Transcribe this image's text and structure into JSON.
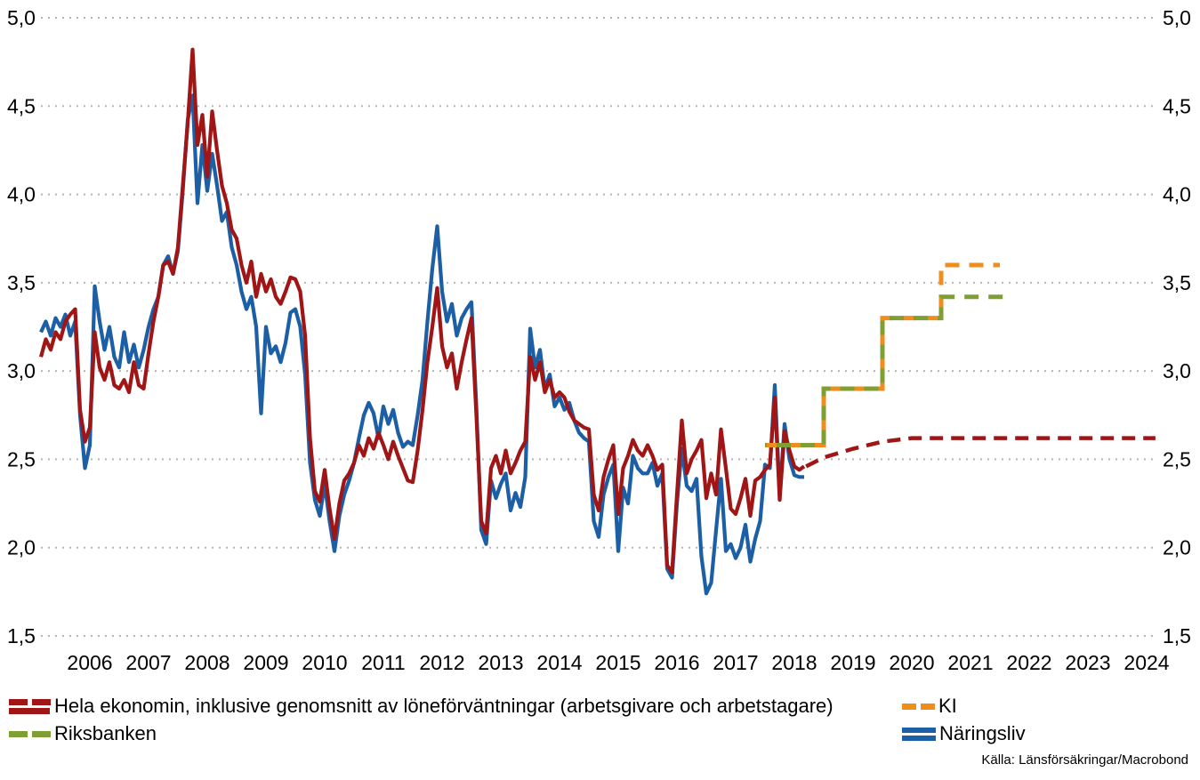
{
  "source": "Källa: Länsförsäkringar/Macrobond",
  "legend": {
    "items": [
      {
        "label": "Hela ekonomin, inklusive genomsnitt av löneförväntningar (arbetsgivare och arbetstagare)",
        "color": "#a01515",
        "style": "solid-with-dashed-forecast"
      },
      {
        "label": "KI",
        "color": "#ef8e1d",
        "style": "dashed"
      },
      {
        "label": "Riksbanken",
        "color": "#7f9e33",
        "style": "dashed"
      },
      {
        "label": "Näringsliv",
        "color": "#1d5fa5",
        "style": "solid"
      }
    ]
  },
  "chart_data": {
    "type": "line",
    "title": "",
    "grid": "dotted-horizontal",
    "legend_position": "bottom",
    "y_axis": {
      "min": 1.5,
      "max": 5.0,
      "tick_step": 0.5,
      "sides": "both",
      "ticks": [
        {
          "value": 5.0,
          "label": "5,0"
        },
        {
          "value": 4.5,
          "label": "4,5"
        },
        {
          "value": 4.0,
          "label": "4,0"
        },
        {
          "value": 3.5,
          "label": "3,5"
        },
        {
          "value": 3.0,
          "label": "3,0"
        },
        {
          "value": 2.5,
          "label": "2,5"
        },
        {
          "value": 2.0,
          "label": "2,0"
        },
        {
          "value": 1.5,
          "label": "1,5"
        }
      ]
    },
    "x_axis": {
      "years": [
        2006,
        2007,
        2008,
        2009,
        2010,
        2011,
        2012,
        2013,
        2014,
        2015,
        2016,
        2017,
        2018,
        2019,
        2020,
        2021,
        2022,
        2023,
        2024
      ]
    },
    "series": [
      {
        "name": "Näringsliv",
        "color": "#1d5fa5",
        "freq": "monthly",
        "start_year": 2005,
        "start_month": 9,
        "values": [
          3.22,
          3.28,
          3.2,
          3.3,
          3.25,
          3.32,
          3.2,
          3.28,
          2.75,
          2.45,
          2.58,
          3.48,
          3.28,
          3.12,
          3.25,
          3.08,
          3.02,
          3.22,
          3.05,
          3.15,
          3.02,
          3.12,
          3.25,
          3.35,
          3.42,
          3.6,
          3.65,
          3.55,
          3.68,
          4.02,
          4.42,
          4.56,
          3.95,
          4.28,
          4.02,
          4.23,
          4.05,
          3.85,
          3.9,
          3.7,
          3.6,
          3.45,
          3.35,
          3.42,
          3.25,
          2.76,
          3.25,
          3.1,
          3.14,
          3.05,
          3.16,
          3.33,
          3.35,
          3.25,
          2.98,
          2.48,
          2.27,
          2.18,
          2.36,
          2.15,
          1.98,
          2.18,
          2.3,
          2.38,
          2.48,
          2.62,
          2.75,
          2.82,
          2.76,
          2.62,
          2.8,
          2.7,
          2.78,
          2.65,
          2.57,
          2.6,
          2.58,
          2.75,
          2.95,
          3.28,
          3.58,
          3.82,
          3.45,
          3.28,
          3.38,
          3.2,
          3.3,
          3.35,
          3.39,
          2.8,
          2.1,
          2.02,
          2.38,
          2.28,
          2.36,
          2.42,
          2.21,
          2.31,
          2.23,
          2.4,
          3.24,
          3.02,
          3.12,
          2.9,
          2.98,
          2.8,
          2.85,
          2.78,
          2.82,
          2.72,
          2.65,
          2.62,
          2.6,
          2.15,
          2.06,
          2.3,
          2.4,
          2.47,
          1.98,
          2.34,
          2.25,
          2.52,
          2.45,
          2.42,
          2.42,
          2.48,
          2.35,
          2.42,
          1.88,
          1.83,
          2.25,
          2.56,
          2.35,
          2.32,
          2.39,
          1.95,
          1.74,
          1.8,
          2.1,
          2.39,
          1.98,
          2.02,
          1.94,
          2.0,
          2.13,
          1.92,
          2.05,
          2.15,
          2.47,
          2.45,
          2.92,
          2.29,
          2.7,
          2.5,
          2.41,
          2.4,
          2.4
        ]
      },
      {
        "name": "Hela ekonomin, inklusive genomsnitt av löneförväntningar (arbetsgivare och arbetstagare)",
        "color": "#a01515",
        "freq": "monthly",
        "start_year": 2005,
        "start_month": 9,
        "values": [
          3.08,
          3.18,
          3.12,
          3.22,
          3.18,
          3.28,
          3.32,
          3.35,
          2.78,
          2.6,
          2.68,
          3.22,
          3.02,
          2.95,
          3.05,
          2.92,
          2.9,
          2.95,
          2.88,
          3.05,
          2.92,
          2.9,
          3.1,
          3.28,
          3.42,
          3.6,
          3.62,
          3.55,
          3.7,
          4.05,
          4.4,
          4.82,
          4.28,
          4.45,
          4.1,
          4.47,
          4.25,
          4.05,
          3.95,
          3.8,
          3.75,
          3.6,
          3.5,
          3.62,
          3.42,
          3.55,
          3.45,
          3.52,
          3.42,
          3.38,
          3.45,
          3.53,
          3.52,
          3.45,
          3.2,
          2.62,
          2.32,
          2.26,
          2.44,
          2.22,
          2.05,
          2.25,
          2.38,
          2.42,
          2.48,
          2.58,
          2.52,
          2.62,
          2.56,
          2.65,
          2.58,
          2.5,
          2.6,
          2.52,
          2.45,
          2.38,
          2.37,
          2.55,
          2.78,
          3.05,
          3.25,
          3.47,
          3.14,
          3.02,
          3.1,
          2.9,
          3.05,
          3.18,
          3.3,
          2.75,
          2.15,
          2.08,
          2.45,
          2.52,
          2.42,
          2.55,
          2.42,
          2.48,
          2.55,
          2.6,
          3.08,
          2.95,
          3.05,
          2.88,
          2.95,
          2.85,
          2.88,
          2.85,
          2.77,
          2.72,
          2.7,
          2.68,
          2.67,
          2.3,
          2.21,
          2.4,
          2.5,
          2.58,
          2.19,
          2.45,
          2.52,
          2.61,
          2.55,
          2.52,
          2.58,
          2.52,
          2.44,
          2.47,
          1.9,
          1.86,
          2.3,
          2.72,
          2.42,
          2.5,
          2.55,
          2.61,
          2.28,
          2.42,
          2.3,
          2.67,
          2.45,
          2.22,
          2.19,
          2.28,
          2.39,
          2.18,
          2.38,
          2.4,
          2.44,
          2.47,
          2.85,
          2.27,
          2.66,
          2.55,
          2.46,
          2.44,
          2.46
        ]
      }
    ],
    "forecasts": [
      {
        "name": "Hela ekonomin (prognos)",
        "color": "#a01515",
        "dash": "15 9",
        "width": 4.5,
        "dashoffset": 0,
        "points": [
          [
            2018.7,
            2.46
          ],
          [
            2019.0,
            2.51
          ],
          [
            2019.5,
            2.56
          ],
          [
            2020.0,
            2.6
          ],
          [
            2020.5,
            2.62
          ],
          [
            2024.65,
            2.62
          ]
        ]
      },
      {
        "name": "KI",
        "color": "#ef8e1d",
        "dash": "16 11",
        "width": 5,
        "dashoffset": 0,
        "points": [
          [
            2018.0,
            2.58
          ],
          [
            2019.0,
            2.58
          ],
          [
            2019.0,
            2.9
          ],
          [
            2020.0,
            2.9
          ],
          [
            2020.0,
            3.3
          ],
          [
            2021.0,
            3.3
          ],
          [
            2021.0,
            3.6
          ],
          [
            2022.0,
            3.6
          ]
        ]
      },
      {
        "name": "Riksbanken",
        "color": "#7f9e33",
        "dash": "16 11",
        "width": 5,
        "dashoffset": 14,
        "points": [
          [
            2018.0,
            2.58
          ],
          [
            2019.0,
            2.58
          ],
          [
            2019.0,
            2.9
          ],
          [
            2020.0,
            2.9
          ],
          [
            2020.0,
            3.3
          ],
          [
            2021.0,
            3.3
          ],
          [
            2021.0,
            3.42
          ],
          [
            2022.05,
            3.42
          ]
        ]
      }
    ],
    "annual_forecast_levels": {
      "KI": {
        "2018": 2.6,
        "2019": 2.9,
        "2020": 3.3,
        "2021": 3.6
      },
      "Riksbanken": {
        "2018": 2.6,
        "2019": 2.9,
        "2020": 3.3,
        "2021": 3.4
      }
    }
  }
}
